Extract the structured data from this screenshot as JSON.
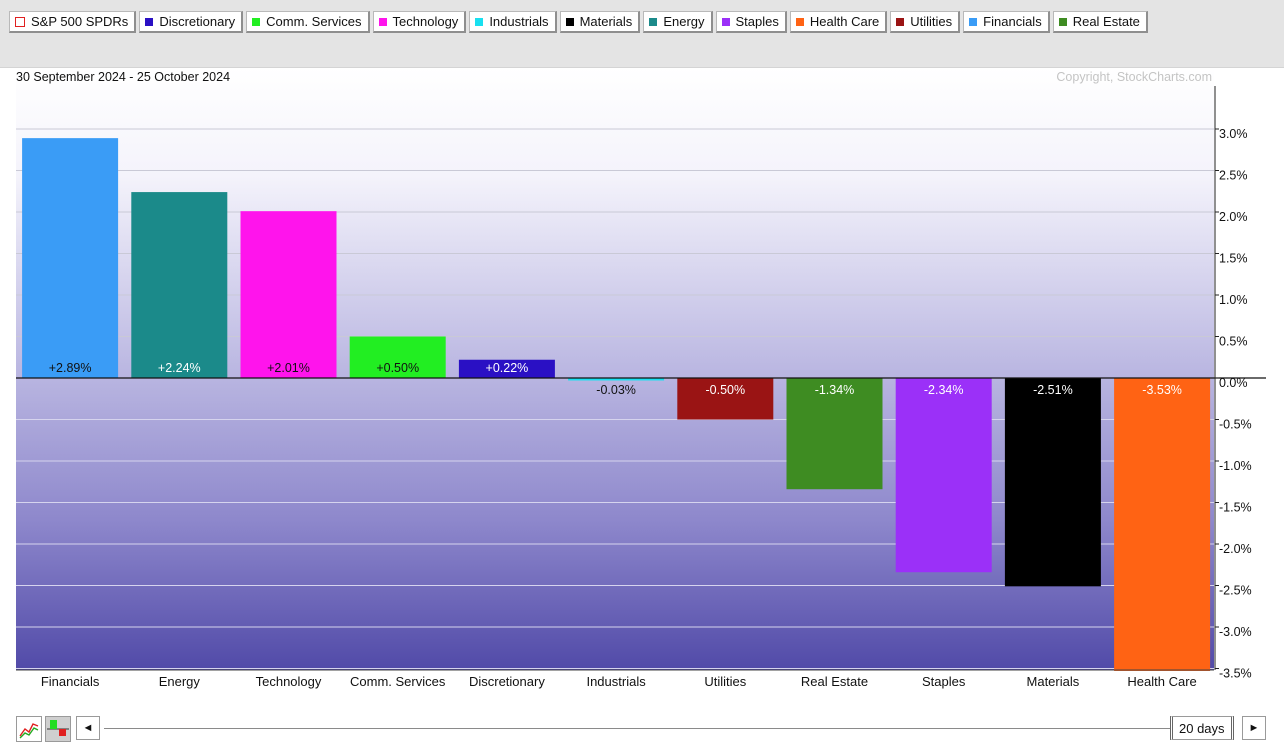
{
  "legend": [
    {
      "label": "S&P 500 SPDRs",
      "color": "#e02020",
      "hollow": true
    },
    {
      "label": "Discretionary",
      "color": "#2a10c4"
    },
    {
      "label": "Comm. Services",
      "color": "#22ee22"
    },
    {
      "label": "Technology",
      "color": "#ff14ec"
    },
    {
      "label": "Industrials",
      "color": "#18e0f0"
    },
    {
      "label": "Materials",
      "color": "#000000"
    },
    {
      "label": "Energy",
      "color": "#1b8a8a"
    },
    {
      "label": "Staples",
      "color": "#9b30f8"
    },
    {
      "label": "Health Care",
      "color": "#ff6314"
    },
    {
      "label": "Utilities",
      "color": "#9a1414"
    },
    {
      "label": "Financials",
      "color": "#3a9cf6"
    },
    {
      "label": "Real Estate",
      "color": "#3e8c22"
    }
  ],
  "header": {
    "date_range": "30 September 2024 - 25 October 2024",
    "copyright": "Copyright, StockCharts.com"
  },
  "chart_data": {
    "type": "bar",
    "categories": [
      "Financials",
      "Energy",
      "Technology",
      "Comm. Services",
      "Discretionary",
      "Industrials",
      "Utilities",
      "Real Estate",
      "Staples",
      "Materials",
      "Health Care"
    ],
    "values": [
      2.89,
      2.24,
      2.01,
      0.5,
      0.22,
      -0.03,
      -0.5,
      -1.34,
      -2.34,
      -2.51,
      -3.53
    ],
    "data_labels": [
      "+2.89%",
      "+2.24%",
      "+2.01%",
      "+0.50%",
      "+0.22%",
      "-0.03%",
      "-0.50%",
      "-1.34%",
      "-2.34%",
      "-2.51%",
      "-3.53%"
    ],
    "colors": [
      "#3a9cf6",
      "#1b8a8a",
      "#ff14ec",
      "#22ee22",
      "#2a10c4",
      "#18e0f0",
      "#9a1414",
      "#3e8c22",
      "#9b30f8",
      "#000000",
      "#ff6314"
    ],
    "label_colors": [
      "#111111",
      "#ffffff",
      "#111111",
      "#111111",
      "#ffffff",
      "#111111",
      "#ffffff",
      "#ffffff",
      "#ffffff",
      "#ffffff",
      "#ffffff"
    ],
    "y_ticks": [
      3.0,
      2.5,
      2.0,
      1.5,
      1.0,
      0.5,
      0.0,
      -0.5,
      -1.0,
      -1.5,
      -2.0,
      -2.5,
      -3.0,
      -3.5
    ],
    "y_tick_labels": [
      "3.0%",
      "2.5%",
      "2.0%",
      "1.5%",
      "1.0%",
      "0.5%",
      "0.0%",
      "-0.5%",
      "-1.0%",
      "-1.5%",
      "-2.0%",
      "-2.5%",
      "-3.0%",
      "-3.5%"
    ],
    "ylim": [
      -3.53,
      3.55
    ],
    "title": "",
    "xlabel": "",
    "ylabel": "",
    "grid": true,
    "y_axis_side": "right"
  },
  "controls": {
    "period_label": "20 days",
    "prev_symbol": "◄",
    "next_symbol": "►",
    "line_chart_icon": "line-chart-icon",
    "bar_chart_icon": "bar-chart-icon"
  }
}
